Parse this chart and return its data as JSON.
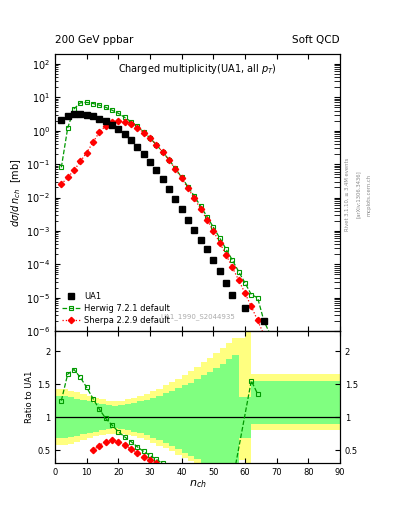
{
  "title_left": "200 GeV ppbar",
  "title_right": "Soft QCD",
  "plot_title": "Charged multiplicity(UA1, all p_{T})",
  "ylabel_main": "dσ/d n_{ch}  [mb]",
  "ylabel_ratio": "Ratio to UA1",
  "xlabel": "n_{ch}",
  "watermark": "UA1_1990_S2044935",
  "right_label1": "Rivet 3.1.10, ≥ 3.4M events",
  "right_label2": "[arXiv:1306.3436]",
  "right_label3": "mcplots.cern.ch",
  "ua1_x": [
    2,
    4,
    6,
    8,
    10,
    12,
    14,
    16,
    18,
    20,
    22,
    24,
    26,
    28,
    30,
    32,
    34,
    36,
    38,
    40,
    42,
    44,
    46,
    48,
    50,
    52,
    54,
    56,
    60,
    66
  ],
  "ua1_y": [
    2.1,
    2.8,
    3.1,
    3.2,
    3.0,
    2.7,
    2.3,
    1.9,
    1.5,
    1.1,
    0.78,
    0.52,
    0.33,
    0.2,
    0.115,
    0.065,
    0.035,
    0.018,
    0.009,
    0.0045,
    0.0022,
    0.0011,
    0.00055,
    0.00028,
    0.000135,
    6.2e-05,
    2.8e-05,
    1.25e-05,
    5e-06,
    2e-06
  ],
  "herwig_x": [
    2,
    4,
    6,
    8,
    10,
    12,
    14,
    16,
    18,
    20,
    22,
    24,
    26,
    28,
    30,
    32,
    34,
    36,
    38,
    40,
    42,
    44,
    46,
    48,
    50,
    52,
    54,
    56,
    58,
    60,
    62,
    64,
    66,
    68,
    70,
    72,
    74,
    76,
    78,
    80,
    82,
    84,
    86,
    88
  ],
  "herwig_y": [
    0.08,
    1.2,
    4.5,
    6.8,
    7.0,
    6.5,
    5.8,
    5.0,
    4.1,
    3.3,
    2.5,
    1.85,
    1.35,
    0.92,
    0.6,
    0.38,
    0.23,
    0.135,
    0.075,
    0.04,
    0.021,
    0.011,
    0.0055,
    0.0027,
    0.0013,
    0.00062,
    0.00029,
    0.000135,
    6.1e-05,
    2.8e-05,
    1.25e-05,
    1e-05,
    2e-06,
    8e-07,
    3e-07,
    1e-07,
    3e-08,
    1e-08,
    3e-09,
    1e-09,
    3e-10,
    1e-10,
    3e-11,
    1e-11
  ],
  "sherpa_x": [
    2,
    4,
    6,
    8,
    10,
    12,
    14,
    16,
    18,
    20,
    22,
    24,
    26,
    28,
    30,
    32,
    34,
    36,
    38,
    40,
    42,
    44,
    46,
    48,
    50,
    52,
    54,
    56,
    58,
    60,
    62,
    64,
    66,
    68,
    70,
    72,
    74,
    76,
    78,
    80,
    82,
    84,
    86,
    88
  ],
  "sherpa_y": [
    0.025,
    0.04,
    0.065,
    0.12,
    0.22,
    0.45,
    0.9,
    1.4,
    1.85,
    2.0,
    1.85,
    1.55,
    1.2,
    0.88,
    0.6,
    0.38,
    0.23,
    0.132,
    0.072,
    0.038,
    0.019,
    0.0095,
    0.0046,
    0.0022,
    0.001,
    0.00045,
    0.000195,
    8.2e-05,
    3.4e-05,
    1.38e-05,
    5.5e-06,
    2.1e-06,
    7.8e-07,
    2.8e-07,
    9.8e-08,
    3.3e-08,
    1.1e-08,
    3.5e-09,
    1.1e-09,
    3.4e-10,
    1e-10,
    2.9e-11,
    8e-12,
    2e-12
  ],
  "ratio_herwig_x": [
    2,
    4,
    6,
    8,
    10,
    12,
    14,
    16,
    18,
    20,
    22,
    24,
    26,
    28,
    30,
    32,
    34,
    36,
    38,
    40,
    42,
    44,
    46,
    48,
    50,
    52,
    54,
    56,
    62,
    64
  ],
  "ratio_herwig_y": [
    1.25,
    1.65,
    1.72,
    1.6,
    1.45,
    1.28,
    1.12,
    0.98,
    0.88,
    0.78,
    0.7,
    0.63,
    0.55,
    0.48,
    0.42,
    0.36,
    0.3,
    0.24,
    0.19,
    0.14,
    0.11,
    0.08,
    0.06,
    0.04,
    0.03,
    0.02,
    0.015,
    0.01,
    1.55,
    1.35
  ],
  "ratio_sherpa_x": [
    12,
    14,
    16,
    18,
    20,
    22,
    24,
    26,
    28,
    30,
    32
  ],
  "ratio_sherpa_y": [
    0.5,
    0.57,
    0.63,
    0.65,
    0.63,
    0.58,
    0.52,
    0.46,
    0.4,
    0.35,
    0.3
  ],
  "band_x": [
    0,
    2,
    4,
    6,
    8,
    10,
    12,
    14,
    16,
    18,
    20,
    22,
    24,
    26,
    28,
    30,
    32,
    34,
    36,
    38,
    40,
    42,
    44,
    46,
    48,
    50,
    52,
    54,
    56,
    58,
    60,
    62,
    64,
    66,
    68,
    70,
    72,
    74,
    76,
    78,
    80,
    82,
    84,
    86,
    88,
    90
  ],
  "band_y_low": [
    0.68,
    0.68,
    0.68,
    0.7,
    0.72,
    0.74,
    0.76,
    0.78,
    0.8,
    0.82,
    0.83,
    0.82,
    0.8,
    0.78,
    0.76,
    0.73,
    0.69,
    0.65,
    0.61,
    0.56,
    0.51,
    0.46,
    0.41,
    0.36,
    0.31,
    0.26,
    0.22,
    0.17,
    0.13,
    0.09,
    0.68,
    0.68,
    0.9,
    0.9,
    0.9,
    0.9,
    0.9,
    0.9,
    0.9,
    0.9,
    0.9,
    0.9,
    0.9,
    0.9,
    0.9,
    0.9
  ],
  "band_y_high": [
    1.32,
    1.32,
    1.32,
    1.3,
    1.28,
    1.26,
    1.24,
    1.22,
    1.2,
    1.18,
    1.17,
    1.18,
    1.2,
    1.22,
    1.24,
    1.26,
    1.29,
    1.32,
    1.36,
    1.4,
    1.44,
    1.48,
    1.52,
    1.57,
    1.63,
    1.69,
    1.75,
    1.81,
    1.88,
    1.94,
    1.3,
    1.3,
    1.55,
    1.55,
    1.55,
    1.55,
    1.55,
    1.55,
    1.55,
    1.55,
    1.55,
    1.55,
    1.55,
    1.55,
    1.55,
    1.55
  ],
  "band_outer_x": [
    0,
    2,
    4,
    6,
    8,
    10,
    12,
    14,
    16,
    18,
    20,
    22,
    24,
    26,
    28,
    30,
    32,
    34,
    36,
    38,
    40,
    42,
    44,
    46,
    48,
    50,
    52,
    54,
    56,
    58,
    60,
    62,
    64,
    66,
    68,
    70,
    72,
    74,
    76,
    78,
    80,
    82,
    84,
    86,
    88,
    90
  ],
  "band_outer_y_low": [
    0.58,
    0.58,
    0.58,
    0.6,
    0.63,
    0.66,
    0.68,
    0.71,
    0.73,
    0.74,
    0.75,
    0.74,
    0.73,
    0.71,
    0.68,
    0.65,
    0.61,
    0.57,
    0.53,
    0.48,
    0.43,
    0.38,
    0.33,
    0.28,
    0.23,
    0.18,
    0.14,
    0.1,
    0.07,
    0.04,
    0.35,
    0.3,
    0.8,
    0.8,
    0.8,
    0.8,
    0.8,
    0.8,
    0.8,
    0.8,
    0.8,
    0.8,
    0.8,
    0.8,
    0.8,
    0.8
  ],
  "band_outer_y_high": [
    1.42,
    1.42,
    1.42,
    1.4,
    1.38,
    1.35,
    1.32,
    1.29,
    1.27,
    1.25,
    1.24,
    1.25,
    1.27,
    1.29,
    1.32,
    1.35,
    1.39,
    1.43,
    1.48,
    1.53,
    1.58,
    1.64,
    1.7,
    1.76,
    1.83,
    1.9,
    1.97,
    2.04,
    2.12,
    2.2,
    2.2,
    2.3,
    1.65,
    1.65,
    1.65,
    1.65,
    1.65,
    1.65,
    1.65,
    1.65,
    1.65,
    1.65,
    1.65,
    1.65,
    1.65,
    1.65
  ],
  "xlim": [
    0,
    90
  ],
  "ylim_main": [
    1e-06,
    200
  ],
  "ylim_ratio": [
    0.3,
    2.3
  ],
  "ratio_yticks": [
    0.5,
    1.0,
    1.5,
    2.0
  ],
  "ratio_yticklabels": [
    "0.5",
    "1",
    "1.5",
    "2"
  ],
  "color_ua1": "black",
  "color_herwig": "#009900",
  "color_sherpa": "red",
  "color_yellow": "#ffff80",
  "color_green": "#80ff80"
}
